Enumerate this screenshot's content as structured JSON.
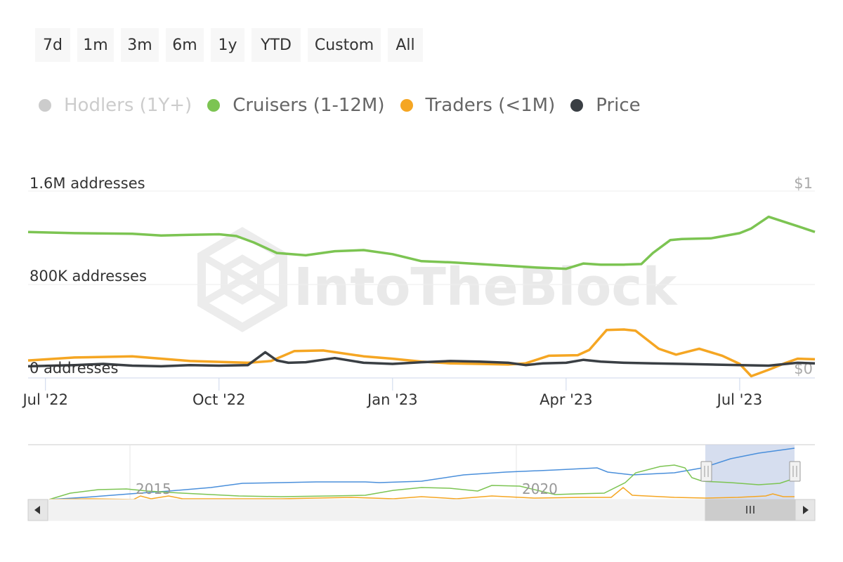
{
  "range_buttons": [
    {
      "label": "7d"
    },
    {
      "label": "1m"
    },
    {
      "label": "3m"
    },
    {
      "label": "6m"
    },
    {
      "label": "1y"
    },
    {
      "label": "YTD"
    },
    {
      "label": "Custom"
    },
    {
      "label": "All"
    }
  ],
  "legend": [
    {
      "label": "Hodlers (1Y+)",
      "color": "#cccccc",
      "enabled": false
    },
    {
      "label": "Cruisers (1-12M)",
      "color": "#7cc452",
      "enabled": true
    },
    {
      "label": "Traders (<1M)",
      "color": "#f5a623",
      "enabled": true
    },
    {
      "label": "Price",
      "color": "#3a3f44",
      "enabled": true
    }
  ],
  "watermark": "IntoTheBlock",
  "colors": {
    "cruisers": "#7cc452",
    "traders": "#f5a623",
    "price": "#3a3f44",
    "navigator_price": "#4a8fdb",
    "navigator_mask": "#ccd6eb"
  },
  "navigator": {
    "labels": [
      {
        "text": "2015",
        "year": 2015
      },
      {
        "text": "2020",
        "year": 2020
      }
    ],
    "scroll_thumb_icon": "grip-lines-icon",
    "scroll_left_icon": "arrow-left-icon",
    "scroll_right_icon": "arrow-right-icon"
  },
  "chart_data": {
    "type": "line",
    "title": "",
    "x_tick_labels": [
      "Jul '22",
      "Oct '22",
      "Jan '23",
      "Apr '23",
      "Jul '23"
    ],
    "x_tick_months": [
      0,
      3,
      6,
      9,
      12
    ],
    "y_left_labels": [
      "1.6M addresses",
      "800K addresses",
      "0 addresses"
    ],
    "y_left_values": [
      1600000,
      800000,
      0
    ],
    "y_right_labels": [
      "$1",
      "$0"
    ],
    "ylim": [
      0,
      1600000
    ],
    "xlim_months": [
      -0.3,
      13.3
    ],
    "grid": true,
    "series": [
      {
        "name": "Cruisers (1-12M)",
        "x": [
          -0.3,
          0.5,
          1.5,
          2.0,
          2.5,
          3.0,
          3.3,
          3.6,
          4.0,
          4.5,
          5.0,
          5.5,
          6.0,
          6.5,
          7.0,
          7.5,
          8.0,
          8.5,
          9.0,
          9.3,
          9.6,
          10.0,
          10.3,
          10.5,
          10.8,
          11.0,
          11.5,
          12.0,
          12.2,
          12.5,
          13.0,
          13.3
        ],
        "y": [
          1250000,
          1240000,
          1235000,
          1220000,
          1225000,
          1230000,
          1215000,
          1160000,
          1070000,
          1050000,
          1085000,
          1095000,
          1060000,
          1000000,
          990000,
          975000,
          960000,
          945000,
          935000,
          980000,
          970000,
          970000,
          975000,
          1070000,
          1180000,
          1190000,
          1195000,
          1240000,
          1280000,
          1380000,
          1300000,
          1250000
        ]
      },
      {
        "name": "Traders (<1M)",
        "x": [
          -0.3,
          0.5,
          1.5,
          2.5,
          3.5,
          3.9,
          4.3,
          4.8,
          5.5,
          6.0,
          6.5,
          7.0,
          7.5,
          8.0,
          8.3,
          8.7,
          9.2,
          9.4,
          9.7,
          10.0,
          10.2,
          10.6,
          10.9,
          11.3,
          11.7,
          12.0,
          12.2,
          12.5,
          12.8,
          13.0,
          13.3
        ],
        "y": [
          150000,
          175000,
          185000,
          145000,
          130000,
          145000,
          230000,
          235000,
          185000,
          165000,
          140000,
          125000,
          120000,
          115000,
          125000,
          190000,
          195000,
          240000,
          410000,
          415000,
          405000,
          250000,
          200000,
          250000,
          190000,
          120000,
          15000,
          70000,
          130000,
          165000,
          160000
        ]
      },
      {
        "name": "Price",
        "x": [
          -0.3,
          0.5,
          1.0,
          1.5,
          2.0,
          2.5,
          3.0,
          3.5,
          3.8,
          4.0,
          4.2,
          4.5,
          5.0,
          5.5,
          6.0,
          6.5,
          7.0,
          7.5,
          8.0,
          8.3,
          8.6,
          9.0,
          9.3,
          9.6,
          10.0,
          10.5,
          11.0,
          11.5,
          12.0,
          12.5,
          13.0,
          13.3
        ],
        "y": [
          100000,
          110000,
          120000,
          105000,
          100000,
          110000,
          105000,
          110000,
          220000,
          150000,
          130000,
          135000,
          170000,
          130000,
          120000,
          135000,
          145000,
          140000,
          130000,
          110000,
          125000,
          130000,
          155000,
          140000,
          130000,
          125000,
          120000,
          115000,
          110000,
          105000,
          130000,
          125000
        ]
      }
    ]
  }
}
